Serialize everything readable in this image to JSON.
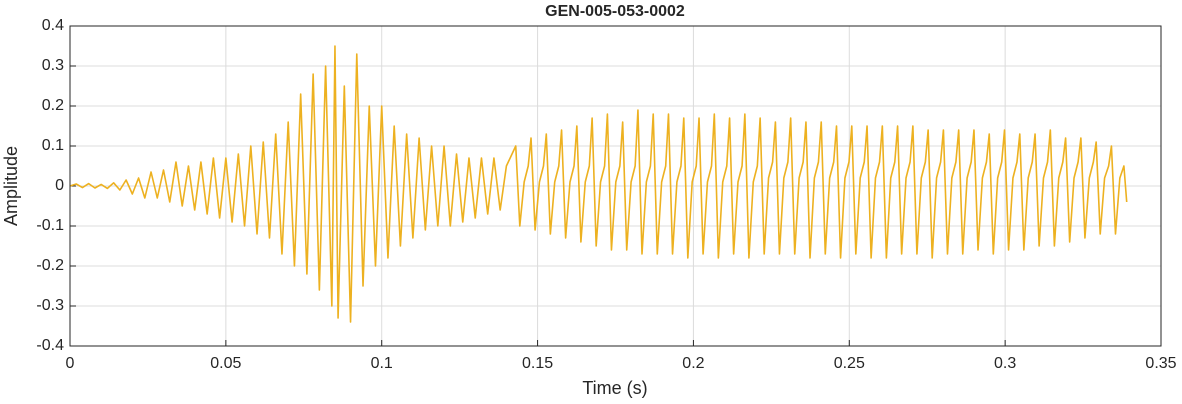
{
  "chart_data": {
    "type": "line",
    "title": "GEN-005-053-0002",
    "xlabel": "Time (s)",
    "ylabel": "Amplitude",
    "color": "#EDB120",
    "grid": true,
    "xlim": [
      0,
      0.35
    ],
    "xticks": [
      0,
      0.05,
      0.1,
      0.15,
      0.2,
      0.25,
      0.3,
      0.35
    ],
    "ylim": [
      -0.4,
      0.4
    ],
    "yticks": [
      -0.4,
      -0.3,
      -0.2,
      -0.1,
      0,
      0.1,
      0.2,
      0.3,
      0.4
    ],
    "x": [
      0,
      0.002,
      0.004,
      0.006,
      0.008,
      0.01,
      0.012,
      0.014,
      0.016,
      0.018,
      0.02,
      0.022,
      0.024,
      0.026,
      0.028,
      0.03,
      0.032,
      0.034,
      0.036,
      0.038,
      0.04,
      0.042,
      0.044,
      0.046,
      0.048,
      0.05,
      0.052,
      0.054,
      0.056,
      0.058,
      0.06,
      0.062,
      0.064,
      0.066,
      0.068,
      0.07,
      0.072,
      0.074,
      0.076,
      0.078,
      0.08,
      0.082,
      0.084,
      0.085,
      0.086,
      0.088,
      0.09,
      0.092,
      0.094,
      0.096,
      0.098,
      0.1,
      0.102,
      0.104,
      0.106,
      0.108,
      0.11,
      0.112,
      0.114,
      0.116,
      0.118,
      0.12,
      0.122,
      0.124,
      0.126,
      0.128,
      0.13,
      0.132,
      0.134,
      0.136,
      0.138,
      0.14,
      0.143,
      0.1443,
      0.1457,
      0.147,
      0.1479,
      0.1492,
      0.1506,
      0.1519,
      0.1528,
      0.1541,
      0.1555,
      0.1568,
      0.1577,
      0.159,
      0.1604,
      0.1617,
      0.1626,
      0.1639,
      0.1653,
      0.1666,
      0.1675,
      0.1688,
      0.1702,
      0.1715,
      0.1724,
      0.1737,
      0.1751,
      0.1764,
      0.1773,
      0.1786,
      0.18,
      0.1813,
      0.1822,
      0.1835,
      0.1849,
      0.1862,
      0.1871,
      0.1884,
      0.1898,
      0.1911,
      0.192,
      0.1933,
      0.1947,
      0.196,
      0.1969,
      0.1982,
      0.1996,
      0.2009,
      0.2018,
      0.2031,
      0.2045,
      0.2058,
      0.2067,
      0.208,
      0.2094,
      0.2107,
      0.2116,
      0.2129,
      0.2143,
      0.2156,
      0.2165,
      0.2178,
      0.2192,
      0.2205,
      0.2214,
      0.2227,
      0.2241,
      0.2254,
      0.2263,
      0.2276,
      0.229,
      0.2303,
      0.2312,
      0.2325,
      0.2339,
      0.2352,
      0.2361,
      0.2374,
      0.2388,
      0.2401,
      0.241,
      0.2423,
      0.2437,
      0.245,
      0.2459,
      0.2472,
      0.2486,
      0.2499,
      0.2508,
      0.2521,
      0.2535,
      0.2548,
      0.2557,
      0.257,
      0.2584,
      0.2597,
      0.2606,
      0.2619,
      0.2633,
      0.2646,
      0.2655,
      0.2668,
      0.2682,
      0.2695,
      0.2704,
      0.2717,
      0.2731,
      0.2744,
      0.2753,
      0.2766,
      0.278,
      0.2793,
      0.2802,
      0.2815,
      0.2829,
      0.2842,
      0.2851,
      0.2864,
      0.2878,
      0.2891,
      0.29,
      0.2913,
      0.2927,
      0.294,
      0.2949,
      0.2962,
      0.2976,
      0.2989,
      0.2998,
      0.3011,
      0.3025,
      0.3038,
      0.3047,
      0.306,
      0.3074,
      0.3087,
      0.3096,
      0.3109,
      0.3123,
      0.3136,
      0.3145,
      0.3158,
      0.3172,
      0.3185,
      0.3194,
      0.3207,
      0.3221,
      0.3234,
      0.3243,
      0.3256,
      0.327,
      0.3283,
      0.3292,
      0.3305,
      0.3319,
      0.3332,
      0.3341,
      0.3354,
      0.3368,
      0.3381,
      0.339
    ],
    "values": [
      0,
      0.005,
      -0.004,
      0.006,
      -0.005,
      0.004,
      -0.006,
      0.008,
      -0.01,
      0.015,
      -0.02,
      0.02,
      -0.03,
      0.035,
      -0.03,
      0.04,
      -0.04,
      0.06,
      -0.05,
      0.05,
      -0.06,
      0.06,
      -0.07,
      0.07,
      -0.08,
      0.07,
      -0.09,
      0.08,
      -0.1,
      0.1,
      -0.12,
      0.11,
      -0.13,
      0.13,
      -0.17,
      0.16,
      -0.2,
      0.23,
      -0.22,
      0.28,
      -0.26,
      0.3,
      -0.3,
      0.35,
      -0.33,
      0.25,
      -0.34,
      0.33,
      -0.25,
      0.2,
      -0.2,
      0.2,
      -0.18,
      0.15,
      -0.15,
      0.13,
      -0.13,
      0.12,
      -0.11,
      0.1,
      -0.1,
      0.1,
      -0.1,
      0.08,
      -0.09,
      0.07,
      -0.08,
      0.07,
      -0.07,
      0.07,
      -0.06,
      0.05,
      0.1,
      -0.1,
      0.01,
      0.05,
      0.12,
      -0.11,
      0.01,
      0.05,
      0.13,
      -0.12,
      0.01,
      0.05,
      0.14,
      -0.13,
      0.01,
      0.05,
      0.15,
      -0.14,
      0.01,
      0.05,
      0.17,
      -0.15,
      0.01,
      0.05,
      0.18,
      -0.16,
      0.01,
      0.05,
      0.16,
      -0.16,
      0.01,
      0.05,
      0.19,
      -0.17,
      0.01,
      0.05,
      0.18,
      -0.17,
      0.01,
      0.05,
      0.18,
      -0.17,
      0.01,
      0.05,
      0.17,
      -0.18,
      0.01,
      0.05,
      0.17,
      -0.17,
      0.01,
      0.05,
      0.18,
      -0.18,
      0.01,
      0.05,
      0.17,
      -0.17,
      0.01,
      0.05,
      0.18,
      -0.18,
      0.01,
      0.05,
      0.17,
      -0.17,
      0.02,
      0.06,
      0.16,
      -0.17,
      0.02,
      0.06,
      0.17,
      -0.17,
      0.02,
      0.06,
      0.16,
      -0.18,
      0.02,
      0.06,
      0.16,
      -0.17,
      0.02,
      0.06,
      0.15,
      -0.18,
      0.02,
      0.06,
      0.15,
      -0.17,
      0.02,
      0.06,
      0.15,
      -0.18,
      0.02,
      0.06,
      0.15,
      -0.18,
      0.02,
      0.06,
      0.15,
      -0.17,
      0.02,
      0.06,
      0.15,
      -0.17,
      0.02,
      0.06,
      0.14,
      -0.18,
      0.02,
      0.06,
      0.14,
      -0.17,
      0.02,
      0.06,
      0.14,
      -0.17,
      0.02,
      0.06,
      0.14,
      -0.16,
      0.02,
      0.06,
      0.13,
      -0.17,
      0.02,
      0.06,
      0.14,
      -0.16,
      0.02,
      0.06,
      0.13,
      -0.16,
      0.02,
      0.06,
      0.13,
      -0.15,
      0.02,
      0.06,
      0.14,
      -0.15,
      0.02,
      0.06,
      0.12,
      -0.14,
      0.02,
      0.06,
      0.12,
      -0.13,
      0.02,
      0.06,
      0.11,
      -0.12,
      0.02,
      0.05,
      0.1,
      -0.12,
      0.02,
      0.05,
      -0.04
    ]
  }
}
